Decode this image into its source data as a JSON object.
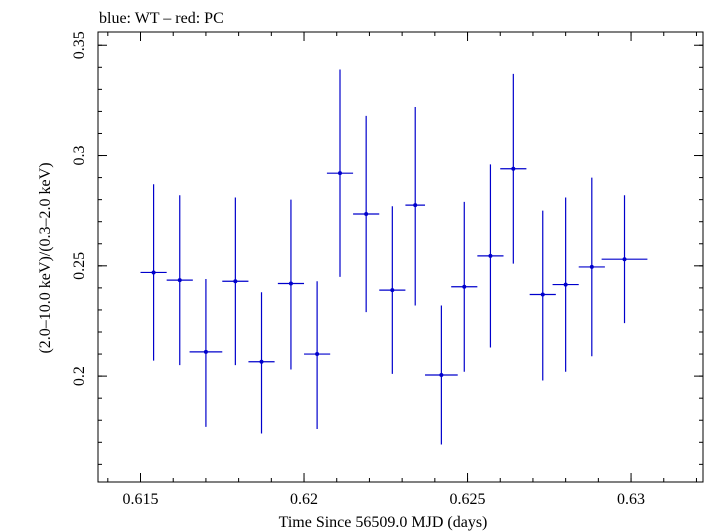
{
  "chart_data": {
    "type": "scatter",
    "title": "blue: WT – red: PC",
    "xlabel": "Time Since 56509.0 MJD (days)",
    "ylabel": "(2.0–10.0 keV)/(0.3–2.0 keV)",
    "xlim": [
      0.6137,
      0.6322
    ],
    "ylim": [
      0.152,
      0.356
    ],
    "x_ticks": [
      0.615,
      0.62,
      0.625,
      0.63
    ],
    "x_tick_labels": [
      "0.615",
      "0.62",
      "0.625",
      "0.63"
    ],
    "y_ticks": [
      0.2,
      0.25,
      0.3,
      0.35
    ],
    "y_tick_labels": [
      "0.2",
      "0.25",
      "0.3",
      "0.35"
    ],
    "grid": false,
    "series_color": "#0000cc",
    "series": [
      {
        "points": [
          {
            "x": 0.6154,
            "xerr": 0.0004,
            "y": 0.247,
            "ylo": 0.207,
            "yhi": 0.287
          },
          {
            "x": 0.6162,
            "xerr": 0.0004,
            "y": 0.2435,
            "ylo": 0.205,
            "yhi": 0.282
          },
          {
            "x": 0.617,
            "xerr": 0.0005,
            "y": 0.211,
            "ylo": 0.177,
            "yhi": 0.244
          },
          {
            "x": 0.6179,
            "xerr": 0.0004,
            "y": 0.243,
            "ylo": 0.205,
            "yhi": 0.281
          },
          {
            "x": 0.6187,
            "xerr": 0.0004,
            "y": 0.2065,
            "ylo": 0.174,
            "yhi": 0.238
          },
          {
            "x": 0.6196,
            "xerr": 0.0004,
            "y": 0.242,
            "ylo": 0.203,
            "yhi": 0.28
          },
          {
            "x": 0.6204,
            "xerr": 0.0004,
            "y": 0.21,
            "ylo": 0.176,
            "yhi": 0.243
          },
          {
            "x": 0.6211,
            "xerr": 0.0004,
            "y": 0.292,
            "ylo": 0.245,
            "yhi": 0.339
          },
          {
            "x": 0.6219,
            "xerr": 0.0004,
            "y": 0.2735,
            "ylo": 0.229,
            "yhi": 0.318
          },
          {
            "x": 0.6227,
            "xerr": 0.0004,
            "y": 0.239,
            "ylo": 0.201,
            "yhi": 0.277
          },
          {
            "x": 0.6234,
            "xerr": 0.0003,
            "y": 0.2775,
            "ylo": 0.232,
            "yhi": 0.322
          },
          {
            "x": 0.6242,
            "xerr": 0.0005,
            "y": 0.2005,
            "ylo": 0.169,
            "yhi": 0.232
          },
          {
            "x": 0.6249,
            "xerr": 0.0004,
            "y": 0.2405,
            "ylo": 0.202,
            "yhi": 0.279
          },
          {
            "x": 0.6257,
            "xerr": 0.0004,
            "y": 0.2545,
            "ylo": 0.213,
            "yhi": 0.296
          },
          {
            "x": 0.6264,
            "xerr": 0.0004,
            "y": 0.294,
            "ylo": 0.251,
            "yhi": 0.337
          },
          {
            "x": 0.6273,
            "xerr": 0.0004,
            "y": 0.237,
            "ylo": 0.198,
            "yhi": 0.275
          },
          {
            "x": 0.628,
            "xerr": 0.0004,
            "y": 0.2415,
            "ylo": 0.202,
            "yhi": 0.281
          },
          {
            "x": 0.6288,
            "xerr": 0.0004,
            "y": 0.2495,
            "ylo": 0.209,
            "yhi": 0.29
          },
          {
            "x": 0.6298,
            "xerr": 0.0007,
            "y": 0.253,
            "ylo": 0.224,
            "yhi": 0.282
          }
        ]
      }
    ]
  }
}
